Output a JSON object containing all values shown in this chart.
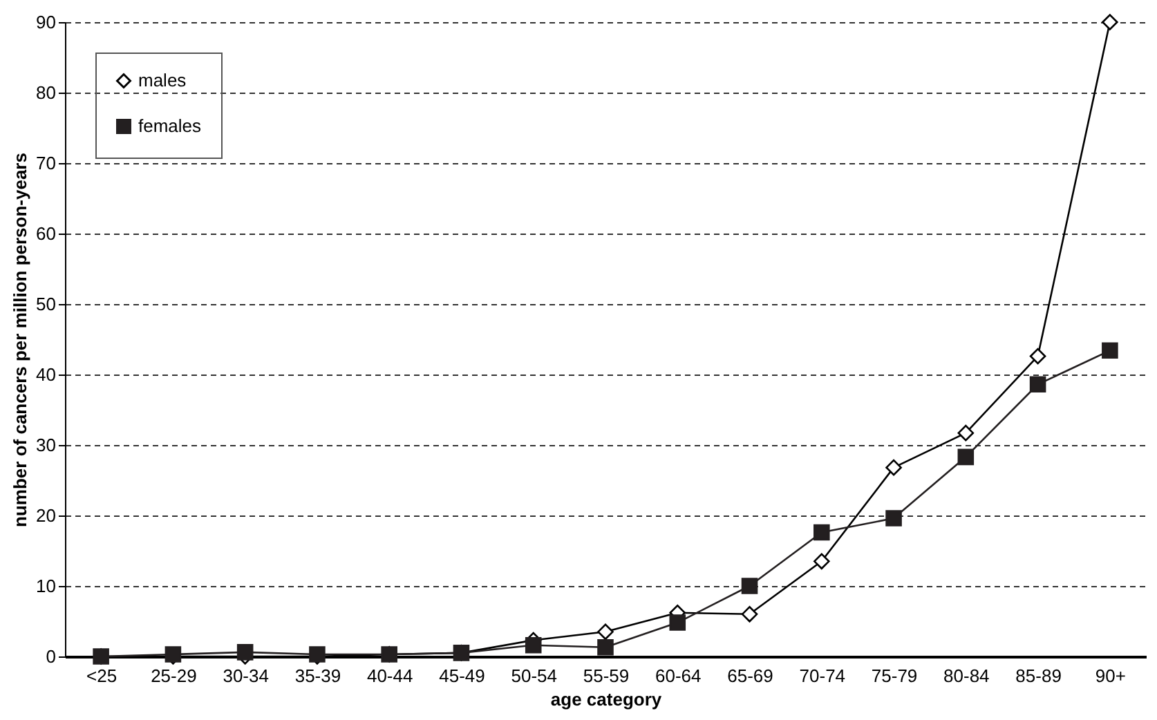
{
  "chart_data": {
    "type": "line",
    "xlabel": "age category",
    "ylabel": "number of cancers per million person-years",
    "categories": [
      "<25",
      "25-29",
      "30-34",
      "35-39",
      "40-44",
      "45-49",
      "50-54",
      "55-59",
      "60-64",
      "65-69",
      "70-74",
      "75-79",
      "80-84",
      "85-89",
      "90+"
    ],
    "series": [
      {
        "name": "males",
        "color": "#000000",
        "marker": "diamond",
        "values": [
          0,
          0,
          0,
          0,
          0.3,
          0.5,
          2.3,
          3.5,
          6.2,
          6,
          13.5,
          26.8,
          31.7,
          42.6,
          90
        ]
      },
      {
        "name": "females",
        "color": "#231f20",
        "marker": "square",
        "values": [
          0,
          0.3,
          0.6,
          0.3,
          0.3,
          0.5,
          1.6,
          1.3,
          4.8,
          10,
          17.6,
          19.6,
          28.3,
          38.6,
          43.4
        ]
      }
    ],
    "ylim": [
      0,
      90
    ],
    "yticks": [
      0,
      10,
      20,
      30,
      40,
      50,
      60,
      70,
      80,
      90
    ],
    "grid": "y",
    "legend": "top left",
    "line_style": "solid"
  }
}
